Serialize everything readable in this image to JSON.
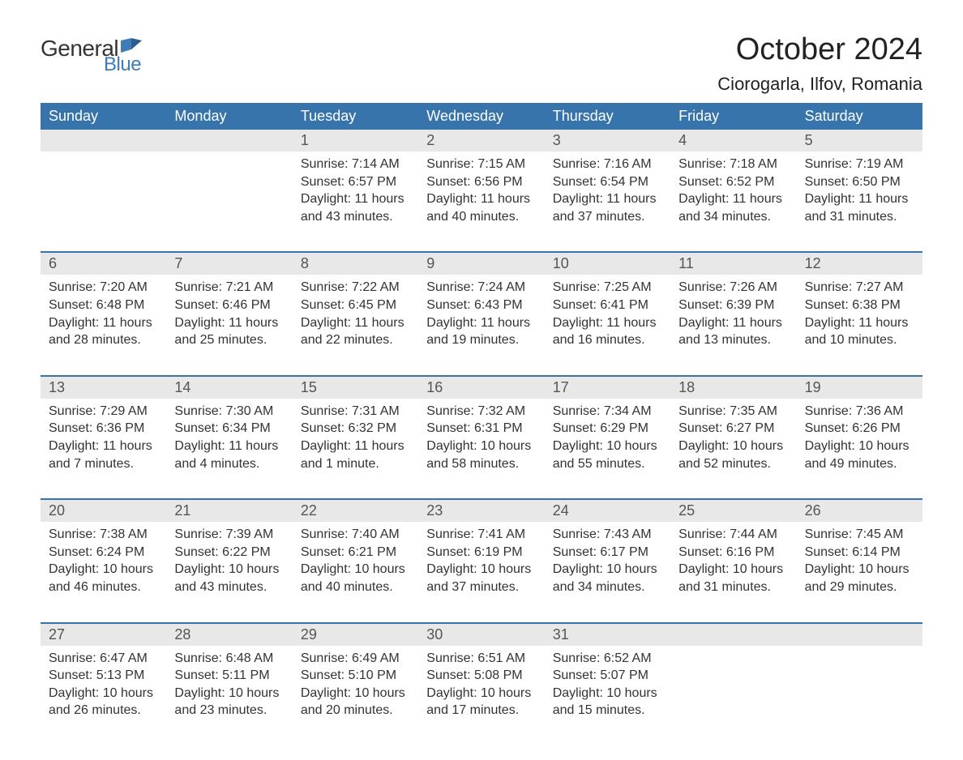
{
  "logo": {
    "general": "General",
    "blue": "Blue"
  },
  "title": "October 2024",
  "location": "Ciorogarla, Ilfov, Romania",
  "colors": {
    "header_bg": "#3874ac",
    "header_text": "#ffffff",
    "daynum_bg": "#e8e8e8",
    "text": "#333333",
    "logo_blue": "#3d7cb8",
    "separator": "#3874ac",
    "background": "#ffffff"
  },
  "typography": {
    "title_fontsize": 38,
    "location_fontsize": 22,
    "header_fontsize": 18,
    "body_fontsize": 16
  },
  "day_headers": [
    "Sunday",
    "Monday",
    "Tuesday",
    "Wednesday",
    "Thursday",
    "Friday",
    "Saturday"
  ],
  "weeks": [
    {
      "days": [
        {
          "num": "",
          "sunrise": "",
          "sunset": "",
          "daylight": ""
        },
        {
          "num": "",
          "sunrise": "",
          "sunset": "",
          "daylight": ""
        },
        {
          "num": "1",
          "sunrise": "Sunrise: 7:14 AM",
          "sunset": "Sunset: 6:57 PM",
          "daylight": "Daylight: 11 hours and 43 minutes."
        },
        {
          "num": "2",
          "sunrise": "Sunrise: 7:15 AM",
          "sunset": "Sunset: 6:56 PM",
          "daylight": "Daylight: 11 hours and 40 minutes."
        },
        {
          "num": "3",
          "sunrise": "Sunrise: 7:16 AM",
          "sunset": "Sunset: 6:54 PM",
          "daylight": "Daylight: 11 hours and 37 minutes."
        },
        {
          "num": "4",
          "sunrise": "Sunrise: 7:18 AM",
          "sunset": "Sunset: 6:52 PM",
          "daylight": "Daylight: 11 hours and 34 minutes."
        },
        {
          "num": "5",
          "sunrise": "Sunrise: 7:19 AM",
          "sunset": "Sunset: 6:50 PM",
          "daylight": "Daylight: 11 hours and 31 minutes."
        }
      ]
    },
    {
      "days": [
        {
          "num": "6",
          "sunrise": "Sunrise: 7:20 AM",
          "sunset": "Sunset: 6:48 PM",
          "daylight": "Daylight: 11 hours and 28 minutes."
        },
        {
          "num": "7",
          "sunrise": "Sunrise: 7:21 AM",
          "sunset": "Sunset: 6:46 PM",
          "daylight": "Daylight: 11 hours and 25 minutes."
        },
        {
          "num": "8",
          "sunrise": "Sunrise: 7:22 AM",
          "sunset": "Sunset: 6:45 PM",
          "daylight": "Daylight: 11 hours and 22 minutes."
        },
        {
          "num": "9",
          "sunrise": "Sunrise: 7:24 AM",
          "sunset": "Sunset: 6:43 PM",
          "daylight": "Daylight: 11 hours and 19 minutes."
        },
        {
          "num": "10",
          "sunrise": "Sunrise: 7:25 AM",
          "sunset": "Sunset: 6:41 PM",
          "daylight": "Daylight: 11 hours and 16 minutes."
        },
        {
          "num": "11",
          "sunrise": "Sunrise: 7:26 AM",
          "sunset": "Sunset: 6:39 PM",
          "daylight": "Daylight: 11 hours and 13 minutes."
        },
        {
          "num": "12",
          "sunrise": "Sunrise: 7:27 AM",
          "sunset": "Sunset: 6:38 PM",
          "daylight": "Daylight: 11 hours and 10 minutes."
        }
      ]
    },
    {
      "days": [
        {
          "num": "13",
          "sunrise": "Sunrise: 7:29 AM",
          "sunset": "Sunset: 6:36 PM",
          "daylight": "Daylight: 11 hours and 7 minutes."
        },
        {
          "num": "14",
          "sunrise": "Sunrise: 7:30 AM",
          "sunset": "Sunset: 6:34 PM",
          "daylight": "Daylight: 11 hours and 4 minutes."
        },
        {
          "num": "15",
          "sunrise": "Sunrise: 7:31 AM",
          "sunset": "Sunset: 6:32 PM",
          "daylight": "Daylight: 11 hours and 1 minute."
        },
        {
          "num": "16",
          "sunrise": "Sunrise: 7:32 AM",
          "sunset": "Sunset: 6:31 PM",
          "daylight": "Daylight: 10 hours and 58 minutes."
        },
        {
          "num": "17",
          "sunrise": "Sunrise: 7:34 AM",
          "sunset": "Sunset: 6:29 PM",
          "daylight": "Daylight: 10 hours and 55 minutes."
        },
        {
          "num": "18",
          "sunrise": "Sunrise: 7:35 AM",
          "sunset": "Sunset: 6:27 PM",
          "daylight": "Daylight: 10 hours and 52 minutes."
        },
        {
          "num": "19",
          "sunrise": "Sunrise: 7:36 AM",
          "sunset": "Sunset: 6:26 PM",
          "daylight": "Daylight: 10 hours and 49 minutes."
        }
      ]
    },
    {
      "days": [
        {
          "num": "20",
          "sunrise": "Sunrise: 7:38 AM",
          "sunset": "Sunset: 6:24 PM",
          "daylight": "Daylight: 10 hours and 46 minutes."
        },
        {
          "num": "21",
          "sunrise": "Sunrise: 7:39 AM",
          "sunset": "Sunset: 6:22 PM",
          "daylight": "Daylight: 10 hours and 43 minutes."
        },
        {
          "num": "22",
          "sunrise": "Sunrise: 7:40 AM",
          "sunset": "Sunset: 6:21 PM",
          "daylight": "Daylight: 10 hours and 40 minutes."
        },
        {
          "num": "23",
          "sunrise": "Sunrise: 7:41 AM",
          "sunset": "Sunset: 6:19 PM",
          "daylight": "Daylight: 10 hours and 37 minutes."
        },
        {
          "num": "24",
          "sunrise": "Sunrise: 7:43 AM",
          "sunset": "Sunset: 6:17 PM",
          "daylight": "Daylight: 10 hours and 34 minutes."
        },
        {
          "num": "25",
          "sunrise": "Sunrise: 7:44 AM",
          "sunset": "Sunset: 6:16 PM",
          "daylight": "Daylight: 10 hours and 31 minutes."
        },
        {
          "num": "26",
          "sunrise": "Sunrise: 7:45 AM",
          "sunset": "Sunset: 6:14 PM",
          "daylight": "Daylight: 10 hours and 29 minutes."
        }
      ]
    },
    {
      "days": [
        {
          "num": "27",
          "sunrise": "Sunrise: 6:47 AM",
          "sunset": "Sunset: 5:13 PM",
          "daylight": "Daylight: 10 hours and 26 minutes."
        },
        {
          "num": "28",
          "sunrise": "Sunrise: 6:48 AM",
          "sunset": "Sunset: 5:11 PM",
          "daylight": "Daylight: 10 hours and 23 minutes."
        },
        {
          "num": "29",
          "sunrise": "Sunrise: 6:49 AM",
          "sunset": "Sunset: 5:10 PM",
          "daylight": "Daylight: 10 hours and 20 minutes."
        },
        {
          "num": "30",
          "sunrise": "Sunrise: 6:51 AM",
          "sunset": "Sunset: 5:08 PM",
          "daylight": "Daylight: 10 hours and 17 minutes."
        },
        {
          "num": "31",
          "sunrise": "Sunrise: 6:52 AM",
          "sunset": "Sunset: 5:07 PM",
          "daylight": "Daylight: 10 hours and 15 minutes."
        },
        {
          "num": "",
          "sunrise": "",
          "sunset": "",
          "daylight": ""
        },
        {
          "num": "",
          "sunrise": "",
          "sunset": "",
          "daylight": ""
        }
      ]
    }
  ]
}
